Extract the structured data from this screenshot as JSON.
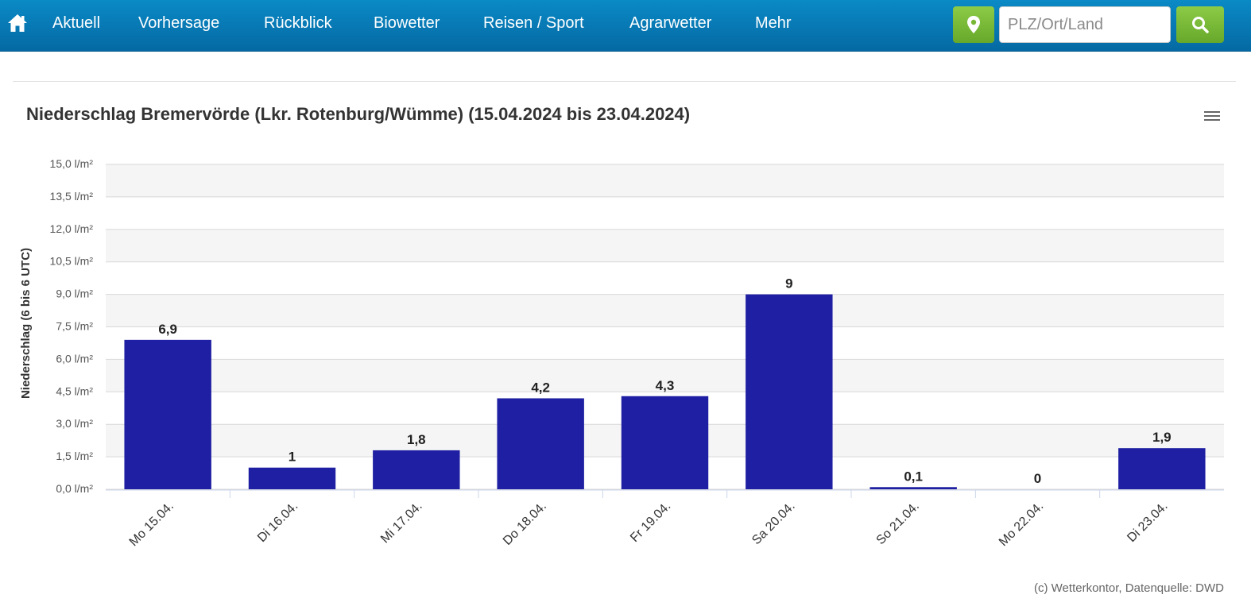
{
  "header": {
    "home_icon": "home-icon",
    "nav_items": [
      "Aktuell",
      "Vorhersage",
      "Rückblick",
      "Biowetter",
      "Reisen / Sport",
      "Agrarwetter",
      "Mehr"
    ],
    "search": {
      "placeholder": "PLZ/Ort/Land",
      "value": ""
    },
    "geo_icon": "map-marker-icon",
    "search_icon": "search-icon",
    "accent_color": "#0678b5",
    "button_color": "#7dbc3a"
  },
  "chart": {
    "title": "Niederschlag Bremervörde (Lkr. Rotenburg/Wümme) (15.04.2024 bis 23.04.2024)",
    "menu_icon": "hamburger-menu-icon",
    "credits": "(c) Wetterkontor, Datenquelle: DWD"
  },
  "chart_data": {
    "type": "bar",
    "title": "Niederschlag Bremervörde (Lkr. Rotenburg/Wümme) (15.04.2024 bis 23.04.2024)",
    "categories": [
      "Mo 15.04.",
      "Di 16.04.",
      "Mi 17.04.",
      "Do 18.04.",
      "Fr 19.04.",
      "Sa 20.04.",
      "So 21.04.",
      "Mo 22.04.",
      "Di 23.04."
    ],
    "values": [
      6.9,
      1,
      1.8,
      4.2,
      4.3,
      9,
      0.1,
      0,
      1.9
    ],
    "data_labels": [
      "6,9",
      "1",
      "1,8",
      "4,2",
      "4,3",
      "9",
      "0,1",
      "0",
      "1,9"
    ],
    "ylabel": "Niederschlag (6 bis 6 UTC)",
    "ylim": [
      0,
      15
    ],
    "y_ticks": [
      0,
      1.5,
      3,
      4.5,
      6,
      7.5,
      9,
      10.5,
      12,
      13.5,
      15
    ],
    "y_tick_labels": [
      "0,0 l/m²",
      "1,5 l/m²",
      "3,0 l/m²",
      "4,5 l/m²",
      "6,0 l/m²",
      "7,5 l/m²",
      "9,0 l/m²",
      "10,5 l/m²",
      "12,0 l/m²",
      "13,5 l/m²",
      "15,0 l/m²"
    ],
    "bar_color": "#1f1fa3",
    "grid": true,
    "legend": "none"
  }
}
